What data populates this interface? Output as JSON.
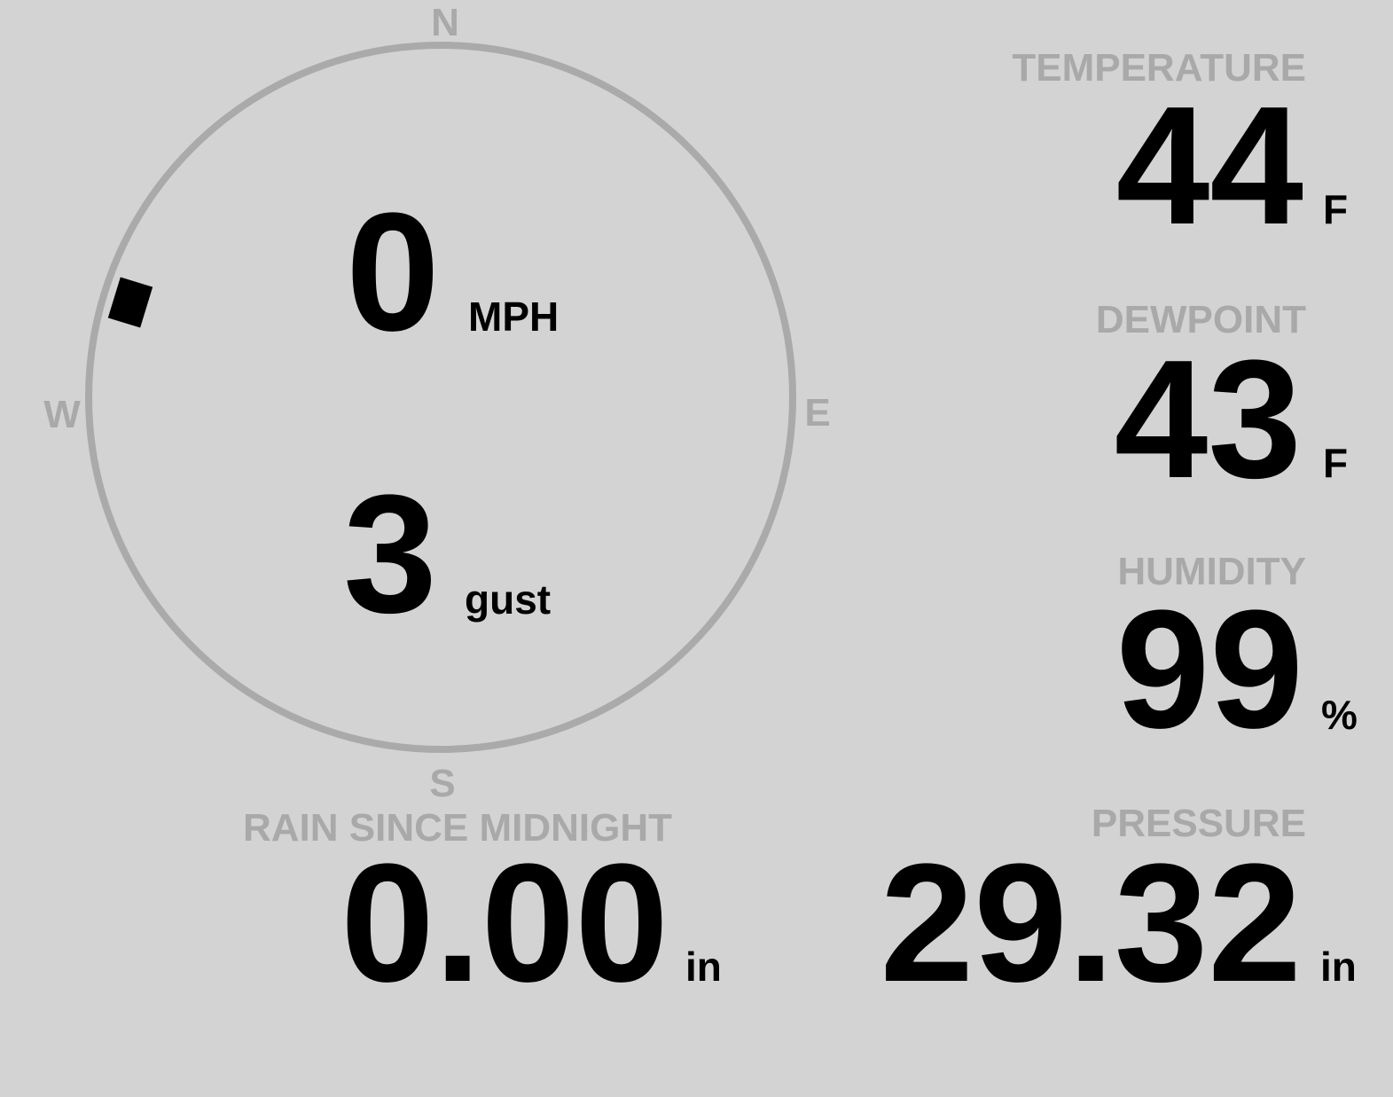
{
  "compass": {
    "north": "N",
    "east": "E",
    "south": "S",
    "west": "W",
    "wind_direction": 287
  },
  "wind": {
    "speed": "0",
    "speed_unit": "MPH",
    "gust": "3",
    "gust_unit": "gust"
  },
  "temperature": {
    "label": "TEMPERATURE",
    "value": "44",
    "unit": "F"
  },
  "dewpoint": {
    "label": "DEWPOINT",
    "value": "43",
    "unit": "F"
  },
  "humidity": {
    "label": "HUMIDITY",
    "value": "99",
    "unit": "%"
  },
  "rain": {
    "label": "RAIN SINCE MIDNIGHT",
    "value": "0.00",
    "unit": "in"
  },
  "pressure": {
    "label": "PRESSURE",
    "value": "29.32",
    "unit": "in"
  }
}
